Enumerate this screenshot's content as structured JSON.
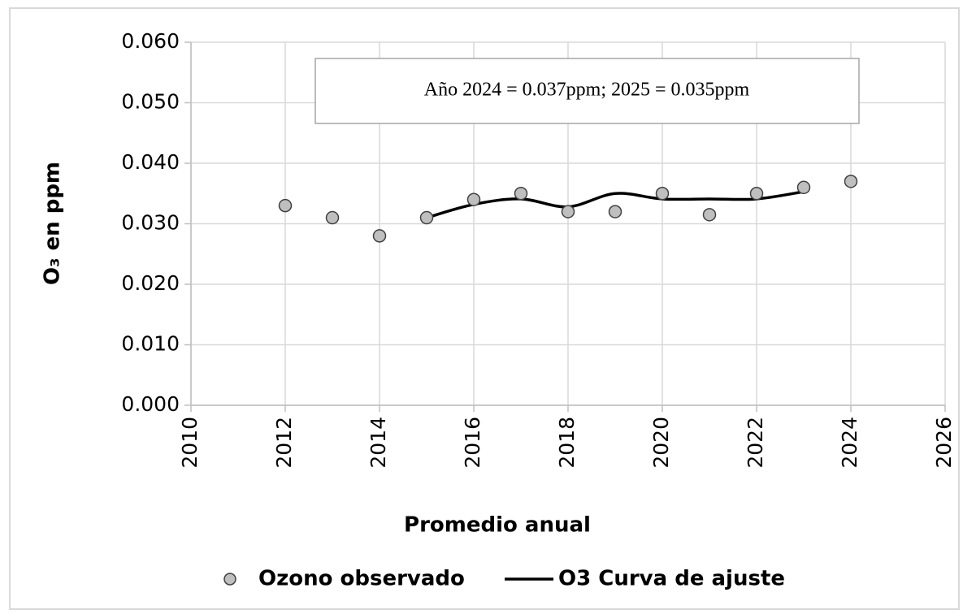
{
  "chart_data": {
    "type": "scatter",
    "xlabel": "Promedio anual",
    "ylabel": "O₃ en ppm",
    "annotation": "Año 2024 = 0.037ppm;  2025 = 0.035ppm",
    "xlim": [
      2010,
      2026
    ],
    "xticks": [
      2010,
      2012,
      2014,
      2016,
      2018,
      2020,
      2022,
      2024,
      2026
    ],
    "ylim": [
      0,
      0.06
    ],
    "yticks": [
      {
        "value": 0,
        "label": "0.000"
      },
      {
        "value": 0.01,
        "label": "0.010"
      },
      {
        "value": 0.02,
        "label": "0.020"
      },
      {
        "value": 0.03,
        "label": "0.030"
      },
      {
        "value": 0.04,
        "label": "0.040"
      },
      {
        "value": 0.05,
        "label": "0.050"
      },
      {
        "value": 0.06,
        "label": "0.060"
      }
    ],
    "grid": true,
    "legend": "bottom",
    "series": [
      {
        "name": "Ozono observado",
        "color": "#bfbfbf",
        "marker": "circle",
        "x": [
          2012,
          2013,
          2014,
          2015,
          2016,
          2017,
          2018,
          2019,
          2020,
          2021,
          2022,
          2023,
          2024
        ],
        "values": [
          0.033,
          0.031,
          0.028,
          0.031,
          0.034,
          0.035,
          0.032,
          0.032,
          0.035,
          0.0315,
          0.035,
          0.036,
          0.037
        ]
      },
      {
        "name": "O3 Curva de ajuste",
        "color": "#000000",
        "marker": "line",
        "x": [
          2015,
          2016,
          2017,
          2018,
          2019,
          2020,
          2021,
          2022,
          2023
        ],
        "values": [
          0.031,
          0.0332,
          0.0341,
          0.0328,
          0.035,
          0.0341,
          0.0341,
          0.0341,
          0.0353
        ]
      }
    ]
  }
}
